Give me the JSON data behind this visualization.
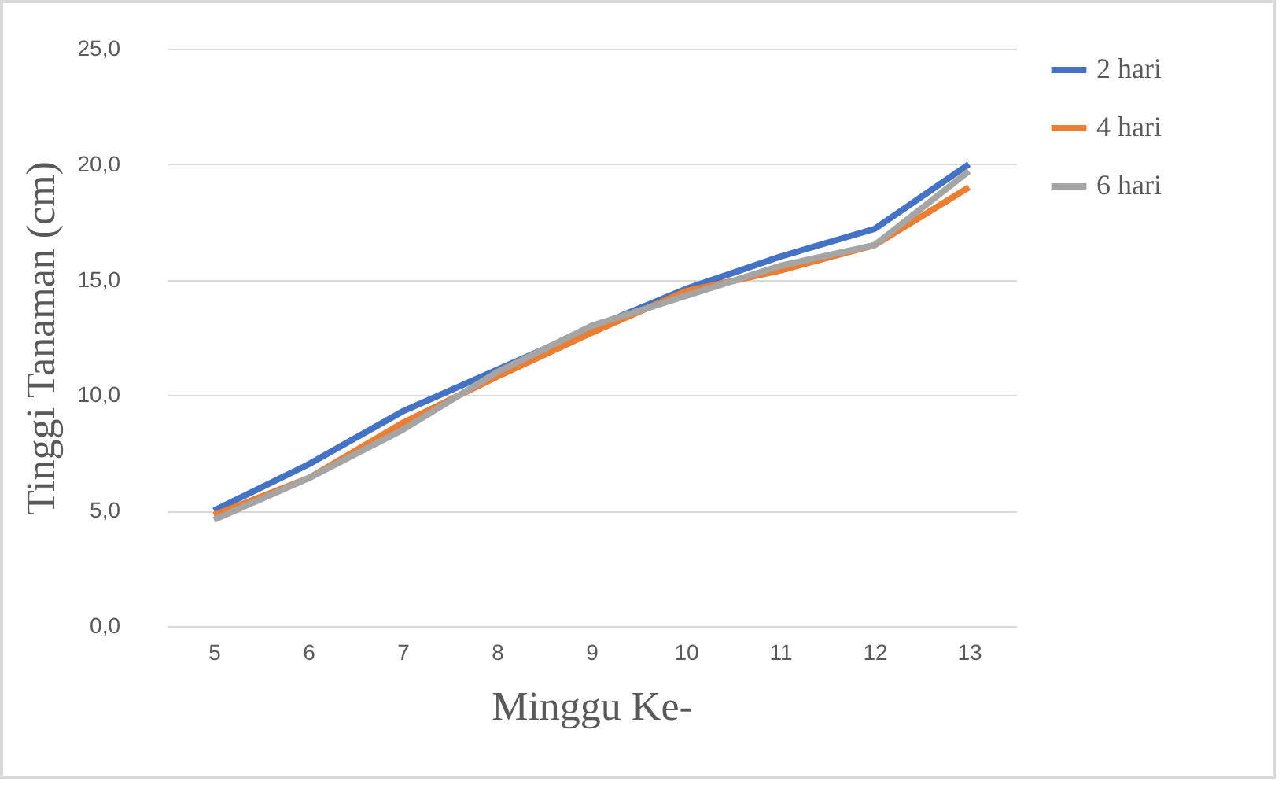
{
  "chart_data": {
    "type": "line",
    "xlabel": "Minggu Ke-",
    "ylabel": "Tinggi Tanaman (cm)",
    "categories": [
      "5",
      "6",
      "7",
      "8",
      "9",
      "10",
      "11",
      "12",
      "13"
    ],
    "series": [
      {
        "name": "2 hari",
        "color": "#4472c4",
        "values": [
          5.0,
          7.0,
          9.3,
          11.1,
          12.9,
          14.6,
          16.0,
          17.2,
          20.0
        ]
      },
      {
        "name": "4 hari",
        "color": "#ed7d31",
        "values": [
          4.8,
          6.4,
          8.8,
          10.8,
          12.7,
          14.5,
          15.4,
          16.5,
          19.0
        ]
      },
      {
        "name": "6 hari",
        "color": "#a5a5a5",
        "values": [
          4.6,
          6.4,
          8.5,
          11.0,
          13.0,
          14.3,
          15.6,
          16.5,
          19.7
        ]
      }
    ],
    "ylim": [
      0,
      25
    ],
    "yticks": [
      {
        "value": 0,
        "label": "0,0"
      },
      {
        "value": 5,
        "label": "5,0"
      },
      {
        "value": 10,
        "label": "10,0"
      },
      {
        "value": 15,
        "label": "15,0"
      },
      {
        "value": 20,
        "label": "20,0"
      },
      {
        "value": 25,
        "label": "25,0"
      }
    ],
    "grid": "y",
    "legend": "right",
    "marker": "none",
    "line_style": "solid"
  }
}
